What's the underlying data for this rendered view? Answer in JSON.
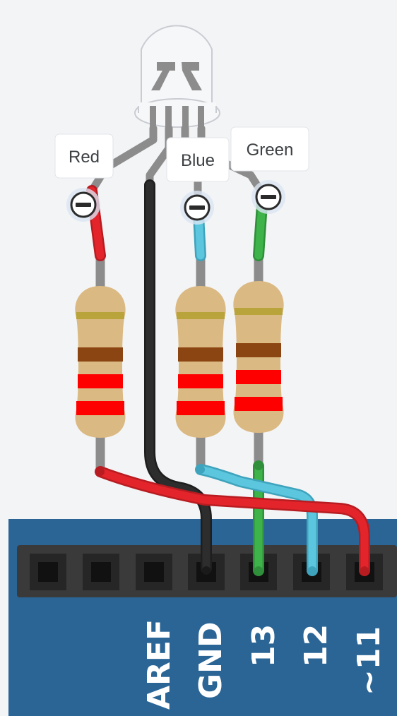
{
  "labels": {
    "red": "Red",
    "blue": "Blue",
    "green": "Green"
  },
  "pins": {
    "aref": "AREF",
    "gnd": "GND",
    "p13": "13",
    "p12": "12",
    "p11": "~11"
  },
  "colors": {
    "board": "#2a6596",
    "header": "#3a3a3a",
    "wire_red": "#e3252b",
    "wire_blue": "#5cc6de",
    "wire_green": "#3db34a",
    "wire_black": "#2d2d2d",
    "lead": "#8c8c8c",
    "resistor_body": "#dbb982",
    "band_brown": "#8b4513",
    "band_red": "#ff0000",
    "band_gold": "#b8a43a"
  }
}
